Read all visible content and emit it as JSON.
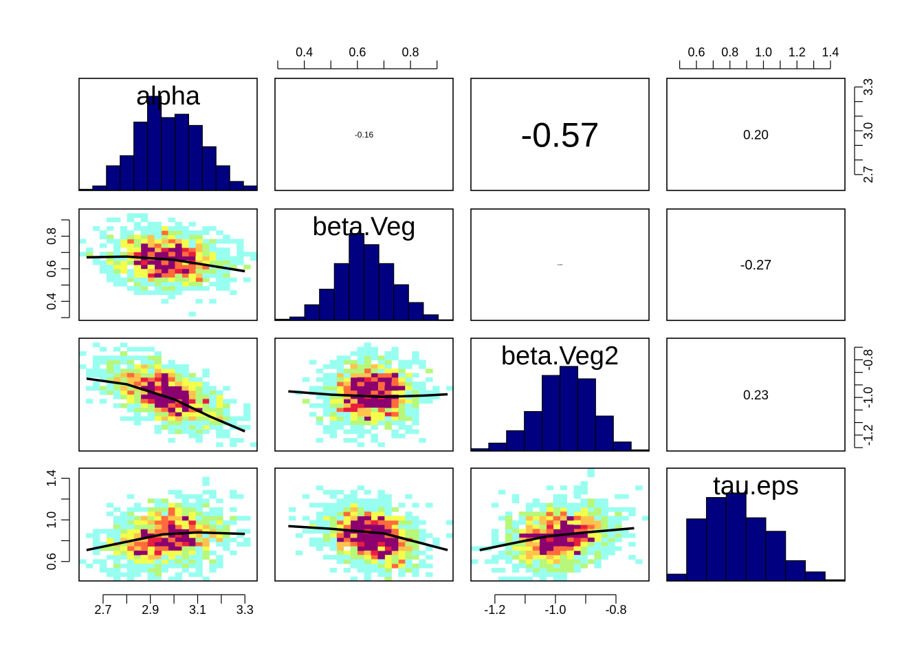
{
  "chart_data": {
    "type": "scatter-matrix",
    "variables": [
      "alpha",
      "beta.Veg",
      "beta.Veg2",
      "tau.eps"
    ],
    "ranges": {
      "alpha": [
        2.61,
        3.34
      ],
      "beta.Veg": [
        0.3,
        0.95
      ],
      "beta.Veg2": [
        -1.27,
        -0.7
      ],
      "tau.eps": [
        0.44,
        1.47
      ]
    },
    "axis_ticks": {
      "alpha": [
        "2.7",
        "2.9",
        "3.1",
        "3.3"
      ],
      "alpha_right": [
        "2.7",
        "3.0",
        "3.3"
      ],
      "beta.Veg": [
        "0.4",
        "0.6",
        "0.8"
      ],
      "beta.Veg2_bottom": [
        "-1.2",
        "-1.0",
        "-0.8"
      ],
      "beta.Veg2_right": [
        "-1.2",
        "-1.0",
        "-0.8"
      ],
      "tau.eps_top": [
        "0.6",
        "0.8",
        "1.0",
        "1.2",
        "1.4"
      ],
      "tau.eps_left": [
        "0.6",
        "1.0",
        "1.4"
      ]
    },
    "correlations": [
      {
        "row": "alpha",
        "col": "beta.Veg",
        "value": "-0.16",
        "size": 12
      },
      {
        "row": "alpha",
        "col": "beta.Veg2",
        "value": "-0.57",
        "size": 50
      },
      {
        "row": "alpha",
        "col": "tau.eps",
        "value": "0.20",
        "size": 19
      },
      {
        "row": "beta.Veg",
        "col": "beta.Veg2",
        "value": "0.001",
        "size": 3
      },
      {
        "row": "beta.Veg",
        "col": "tau.eps",
        "value": "-0.27",
        "size": 20
      },
      {
        "row": "beta.Veg2",
        "col": "tau.eps",
        "value": "0.23",
        "size": 19
      }
    ],
    "histograms": {
      "alpha": [
        0.01,
        0.04,
        0.22,
        0.31,
        0.61,
        0.84,
        0.65,
        0.68,
        0.58,
        0.39,
        0.22,
        0.08,
        0.04
      ],
      "beta.Veg": [
        0.01,
        0.03,
        0.14,
        0.28,
        0.51,
        0.78,
        0.68,
        0.51,
        0.32,
        0.16,
        0.05,
        0.005
      ],
      "beta.Veg2": [
        0.02,
        0.07,
        0.18,
        0.35,
        0.67,
        0.75,
        0.64,
        0.31,
        0.08,
        0.01
      ],
      "tau.eps": [
        0.06,
        0.55,
        0.74,
        0.78,
        0.56,
        0.44,
        0.18,
        0.08,
        0.01
      ]
    },
    "smoothers": {
      "alpha|beta.Veg": [
        [
          2.63,
          0.67
        ],
        [
          2.8,
          0.675
        ],
        [
          3.0,
          0.655
        ],
        [
          3.15,
          0.62
        ],
        [
          3.3,
          0.585
        ]
      ],
      "alpha|beta.Veg2": [
        [
          2.63,
          -0.9
        ],
        [
          2.8,
          -0.93
        ],
        [
          3.0,
          -1.01
        ],
        [
          3.15,
          -1.1
        ],
        [
          3.3,
          -1.18
        ]
      ],
      "beta.Veg|beta.Veg2": [
        [
          0.34,
          -0.968
        ],
        [
          0.5,
          -0.985
        ],
        [
          0.7,
          -0.997
        ],
        [
          0.85,
          -0.99
        ],
        [
          0.94,
          -0.983
        ]
      ],
      "alpha|tau.eps": [
        [
          2.63,
          0.71
        ],
        [
          2.8,
          0.79
        ],
        [
          2.95,
          0.86
        ],
        [
          3.1,
          0.88
        ],
        [
          3.3,
          0.865
        ]
      ],
      "beta.Veg|tau.eps": [
        [
          0.34,
          0.94
        ],
        [
          0.5,
          0.915
        ],
        [
          0.7,
          0.87
        ],
        [
          0.85,
          0.77
        ],
        [
          0.94,
          0.71
        ]
      ],
      "beta.Veg2|tau.eps": [
        [
          -1.25,
          0.71
        ],
        [
          -1.15,
          0.77
        ],
        [
          -1.03,
          0.84
        ],
        [
          -0.9,
          0.88
        ],
        [
          -0.74,
          0.92
        ]
      ]
    },
    "density_colors": [
      "#98FFF0",
      "#B7F77A",
      "#F4FF4C",
      "#FFC34D",
      "#FF6B3D",
      "#E81E3F",
      "#8B006E"
    ],
    "scatter_seed": 20240531
  }
}
